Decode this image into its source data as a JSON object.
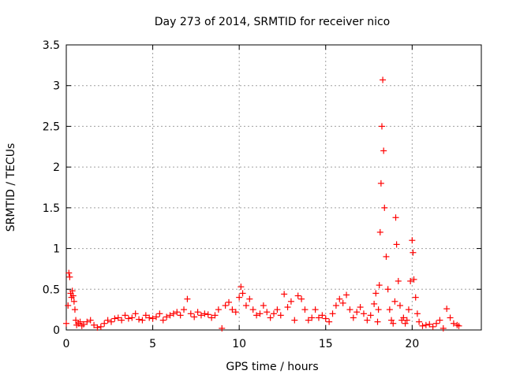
{
  "chart_data": {
    "type": "scatter",
    "title": "Day 273 of 2014, SRMTID for receiver nico",
    "xlabel": "GPS time / hours",
    "ylabel": "SRMTID / TECUs",
    "xlim": [
      0,
      24
    ],
    "ylim": [
      0,
      3.5
    ],
    "x_ticks": [
      0,
      5,
      10,
      15,
      20
    ],
    "x_tick_labels": [
      "0",
      "5",
      "10",
      "15",
      "20"
    ],
    "y_ticks": [
      0,
      0.5,
      1,
      1.5,
      2,
      2.5,
      3,
      3.5
    ],
    "y_tick_labels": [
      "0",
      "0.5",
      "1",
      "1.5",
      "2",
      "2.5",
      "3",
      "3.5"
    ],
    "grid": true,
    "marker": "+",
    "series": [
      {
        "name": "SRMTID",
        "color": "#ff0000",
        "x": [
          0.0,
          0.1,
          0.15,
          0.2,
          0.25,
          0.3,
          0.35,
          0.4,
          0.45,
          0.5,
          0.55,
          0.6,
          0.7,
          0.8,
          0.9,
          1.0,
          1.2,
          1.4,
          1.6,
          1.8,
          2.0,
          2.2,
          2.4,
          2.6,
          2.8,
          3.0,
          3.2,
          3.4,
          3.6,
          3.8,
          4.0,
          4.2,
          4.4,
          4.6,
          4.8,
          5.0,
          5.2,
          5.4,
          5.6,
          5.8,
          6.0,
          6.2,
          6.4,
          6.6,
          6.8,
          7.0,
          7.2,
          7.4,
          7.6,
          7.8,
          8.0,
          8.2,
          8.4,
          8.6,
          8.8,
          9.0,
          9.2,
          9.4,
          9.6,
          9.8,
          10.0,
          10.1,
          10.2,
          10.4,
          10.6,
          10.8,
          11.0,
          11.2,
          11.4,
          11.6,
          11.8,
          12.0,
          12.2,
          12.4,
          12.6,
          12.8,
          13.0,
          13.2,
          13.4,
          13.6,
          13.8,
          14.0,
          14.2,
          14.4,
          14.6,
          14.8,
          15.0,
          15.2,
          15.4,
          15.6,
          15.8,
          16.0,
          16.2,
          16.4,
          16.6,
          16.8,
          17.0,
          17.2,
          17.4,
          17.6,
          17.8,
          17.9,
          18.0,
          18.05,
          18.1,
          18.15,
          18.2,
          18.25,
          18.3,
          18.35,
          18.4,
          18.5,
          18.6,
          18.7,
          18.8,
          18.9,
          19.0,
          19.05,
          19.1,
          19.2,
          19.3,
          19.4,
          19.5,
          19.6,
          19.7,
          19.8,
          19.9,
          20.0,
          20.05,
          20.1,
          20.2,
          20.3,
          20.4,
          20.6,
          20.8,
          21.0,
          21.2,
          21.4,
          21.6,
          21.8,
          22.0,
          22.2,
          22.4,
          22.6,
          22.7
        ],
        "y": [
          0.08,
          0.3,
          0.7,
          0.65,
          0.45,
          0.4,
          0.48,
          0.42,
          0.35,
          0.25,
          0.12,
          0.06,
          0.08,
          0.1,
          0.05,
          0.07,
          0.1,
          0.12,
          0.06,
          0.03,
          0.04,
          0.08,
          0.12,
          0.1,
          0.14,
          0.15,
          0.12,
          0.18,
          0.14,
          0.15,
          0.2,
          0.13,
          0.12,
          0.18,
          0.15,
          0.14,
          0.16,
          0.2,
          0.12,
          0.16,
          0.18,
          0.2,
          0.22,
          0.18,
          0.25,
          0.38,
          0.2,
          0.16,
          0.22,
          0.18,
          0.2,
          0.19,
          0.15,
          0.18,
          0.25,
          0.02,
          0.3,
          0.34,
          0.25,
          0.22,
          0.4,
          0.53,
          0.45,
          0.3,
          0.38,
          0.25,
          0.18,
          0.2,
          0.3,
          0.22,
          0.15,
          0.2,
          0.25,
          0.18,
          0.44,
          0.28,
          0.35,
          0.12,
          0.42,
          0.38,
          0.25,
          0.12,
          0.15,
          0.25,
          0.15,
          0.18,
          0.14,
          0.1,
          0.2,
          0.3,
          0.38,
          0.33,
          0.43,
          0.25,
          0.15,
          0.22,
          0.28,
          0.2,
          0.12,
          0.18,
          0.32,
          0.45,
          0.1,
          0.25,
          0.55,
          1.2,
          1.8,
          2.5,
          3.07,
          2.2,
          1.5,
          0.9,
          0.5,
          0.25,
          0.12,
          0.08,
          0.35,
          1.38,
          1.05,
          0.6,
          0.3,
          0.12,
          0.15,
          0.08,
          0.12,
          0.25,
          0.6,
          1.1,
          0.95,
          0.62,
          0.4,
          0.2,
          0.1,
          0.05,
          0.06,
          0.07,
          0.04,
          0.08,
          0.12,
          0.02,
          0.26,
          0.15,
          0.08,
          0.06,
          0.05
        ]
      }
    ]
  }
}
